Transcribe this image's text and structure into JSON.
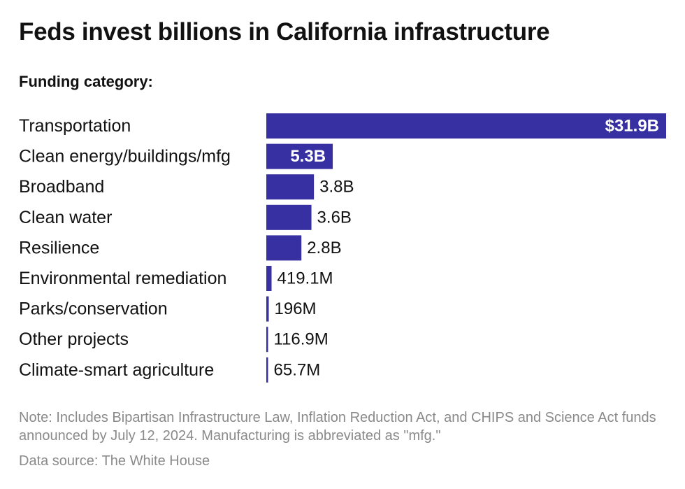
{
  "title": "Feds invest billions in California infrastructure",
  "subtitle": "Funding category:",
  "note": "Note: Includes Bipartisan Infrastructure Law, Inflation Reduction Act, and CHIPS and Science Act funds announced by July 12, 2024. Manufacturing is abbreviated as \"mfg.\"",
  "source": "Data source: The White House",
  "colors": {
    "bar": "#3730a3",
    "label_inside": "#ffffff",
    "label_outside": "#111111"
  },
  "chart_data": {
    "type": "bar",
    "orientation": "horizontal",
    "unit": "billions USD",
    "categories": [
      "Transportation",
      "Clean energy/buildings/mfg",
      "Broadband",
      "Clean water",
      "Resilience",
      "Environmental remediation",
      "Parks/conservation",
      "Other projects",
      "Climate-smart agriculture"
    ],
    "values": [
      31.9,
      5.3,
      3.8,
      3.6,
      2.8,
      0.4191,
      0.196,
      0.1169,
      0.0657
    ],
    "value_labels": [
      "$31.9B",
      "5.3B",
      "3.8B",
      "3.6B",
      "2.8B",
      "419.1M",
      "196M",
      "116.9M",
      "65.7M"
    ],
    "xlim": [
      0,
      31.9
    ],
    "grid": false,
    "legend": "none"
  }
}
